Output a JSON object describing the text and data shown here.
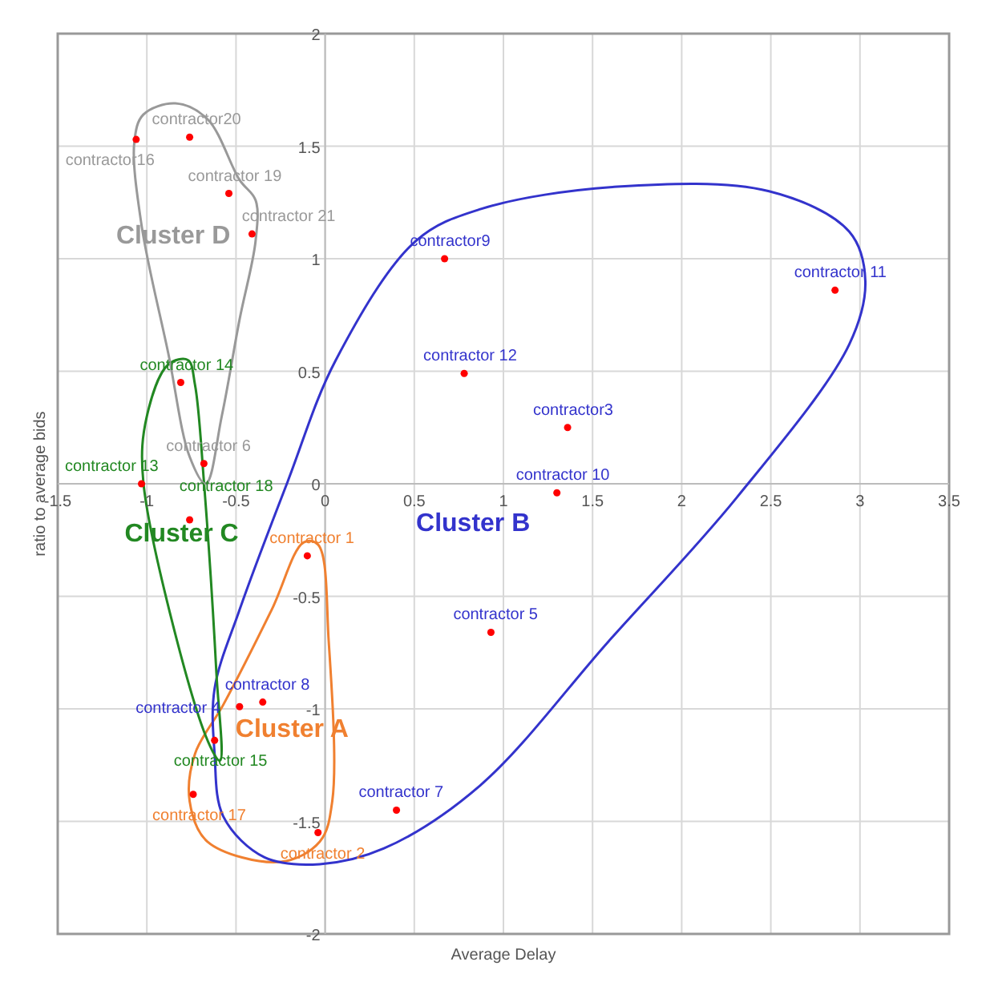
{
  "chart_data": {
    "type": "scatter",
    "xlabel": "Average Delay",
    "ylabel": "ratio to average bids",
    "xlim": [
      -1.5,
      3.5
    ],
    "ylim": [
      -2,
      2
    ],
    "xticks": [
      {
        "value": -1.5,
        "label": "-1.5"
      },
      -1,
      {
        "value": -0.5,
        "label": "-0.5"
      },
      0,
      {
        "value": 0.5,
        "label": "0.5"
      },
      1,
      {
        "value": 1.5,
        "label": "1.5"
      },
      2,
      {
        "value": 2.5,
        "label": "2.5"
      },
      3,
      {
        "value": 3.5,
        "label": "3.5"
      }
    ],
    "yticks": [
      -2,
      {
        "value": -1.5,
        "label": "-1.5"
      },
      -1,
      {
        "value": -0.5,
        "label": "-0.5"
      },
      0,
      {
        "value": 0.5,
        "label": "0.5"
      },
      1,
      {
        "value": 1.5,
        "label": "1.5"
      },
      2
    ],
    "grid": true,
    "marker": "circle",
    "series": [
      {
        "color": "#f08030",
        "colors": [
          "#ff0000",
          "#ff0000",
          "#ff0000"
        ],
        "x": [
          -0.1,
          -0.04,
          -0.74
        ],
        "values": [
          -0.32,
          -1.55,
          -1.38
        ],
        "value_labels": [
          "contractor 1",
          "contractor 2",
          "contractor 17"
        ]
      },
      {
        "color": "#3333cc",
        "colors": [
          "#ff0000",
          "#ff0000",
          "#ff0000",
          "#ff0000",
          "#ff0000",
          "#ff0000",
          "#ff0000",
          "#ff0000",
          "#ff0000"
        ],
        "x": [
          1.36,
          -0.48,
          0.93,
          0.4,
          -0.35,
          0.67,
          1.3,
          2.86,
          0.78
        ],
        "values": [
          0.25,
          -0.99,
          -0.66,
          -1.45,
          -0.97,
          1.0,
          -0.04,
          0.86,
          0.49
        ],
        "value_labels": [
          "contractor3",
          "contractor 4",
          "contractor 5",
          "contractor 7",
          "contractor 8",
          "contractor9",
          "contractor 10",
          "contractor 11",
          "contractor 12"
        ]
      },
      {
        "color": "#228822",
        "colors": [
          "#ff0000",
          "#ff0000",
          "#ff0000",
          "#ff0000"
        ],
        "x": [
          -1.03,
          -0.81,
          -0.62,
          -0.76
        ],
        "values": [
          0.0,
          0.45,
          -1.14,
          -0.16
        ],
        "value_labels": [
          "contractor 13",
          "contractor 14",
          "contractor 15",
          "contractor 18"
        ]
      },
      {
        "color": "#999999",
        "colors": [
          "#ff0000",
          "#ff0000",
          "#ff0000",
          "#ff0000",
          "#ff0000"
        ],
        "x": [
          -0.68,
          -1.06,
          -0.54,
          -0.76,
          -0.41
        ],
        "values": [
          0.09,
          1.53,
          1.29,
          1.54,
          1.11
        ],
        "value_labels": [
          "contractor 6",
          "contractor16",
          "contractor 19",
          "contractor20",
          "contractor 21"
        ]
      }
    ],
    "annotations": [
      "Cluster A",
      "Cluster B",
      "Cluster C",
      "Cluster D"
    ]
  }
}
